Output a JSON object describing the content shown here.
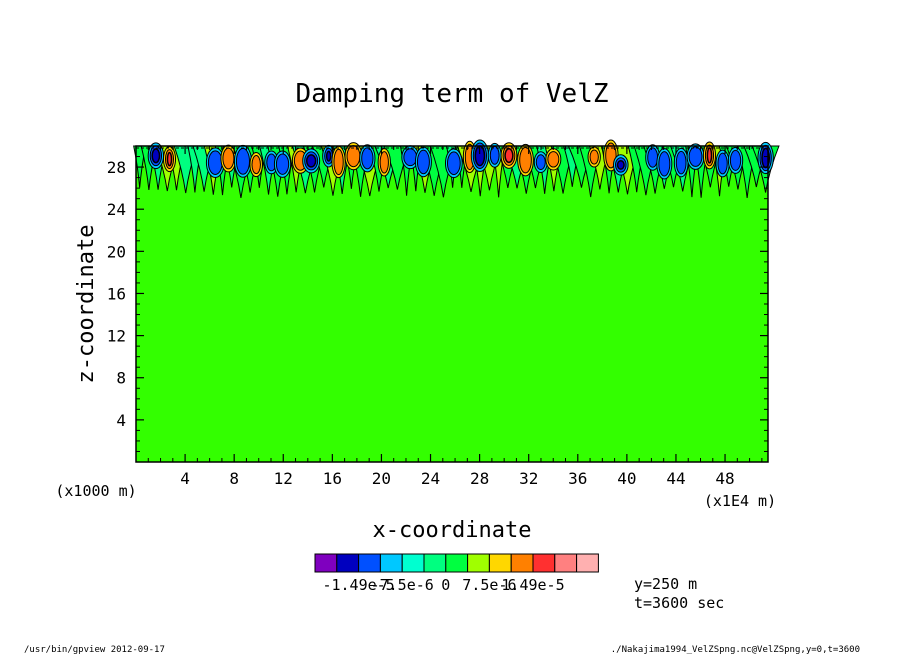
{
  "chart_data": {
    "type": "heatmap",
    "title": "Damping term of VelZ",
    "xlabel": "x-coordinate",
    "ylabel": "z-coordinate",
    "x_unit": "(x1E4 m)",
    "y_unit": "(x1000 m)",
    "xlim": [
      0,
      51.5
    ],
    "ylim": [
      0,
      30
    ],
    "x_ticks": [
      4,
      8,
      12,
      16,
      20,
      24,
      28,
      32,
      36,
      40,
      44,
      48
    ],
    "y_ticks": [
      4,
      8,
      12,
      16,
      20,
      24,
      28
    ],
    "background_value": 0,
    "active_layer_z_range": [
      25,
      30
    ],
    "colorbar": {
      "colors": [
        "#7f00bf",
        "#0000bf",
        "#0050ff",
        "#00c8ff",
        "#00ffd0",
        "#00ff80",
        "#00ff40",
        "#a0ff00",
        "#ffd700",
        "#ff8000",
        "#ff3030",
        "#ff8080",
        "#ffb0b0"
      ],
      "labels": [
        "-1.49e-5",
        "-7.5e-6",
        "0",
        "7.5e-6",
        "1.49e-5"
      ],
      "label_positions": [
        2,
        4,
        6,
        8,
        10
      ]
    },
    "annotation_y": "y=250 m",
    "annotation_t": "t=3600 sec"
  },
  "footer_left": "/usr/bin/gpview  2012-09-17",
  "footer_right": "./Nakajima1994_VelZSpng.nc@VelZSpng,y=0,t=3600"
}
